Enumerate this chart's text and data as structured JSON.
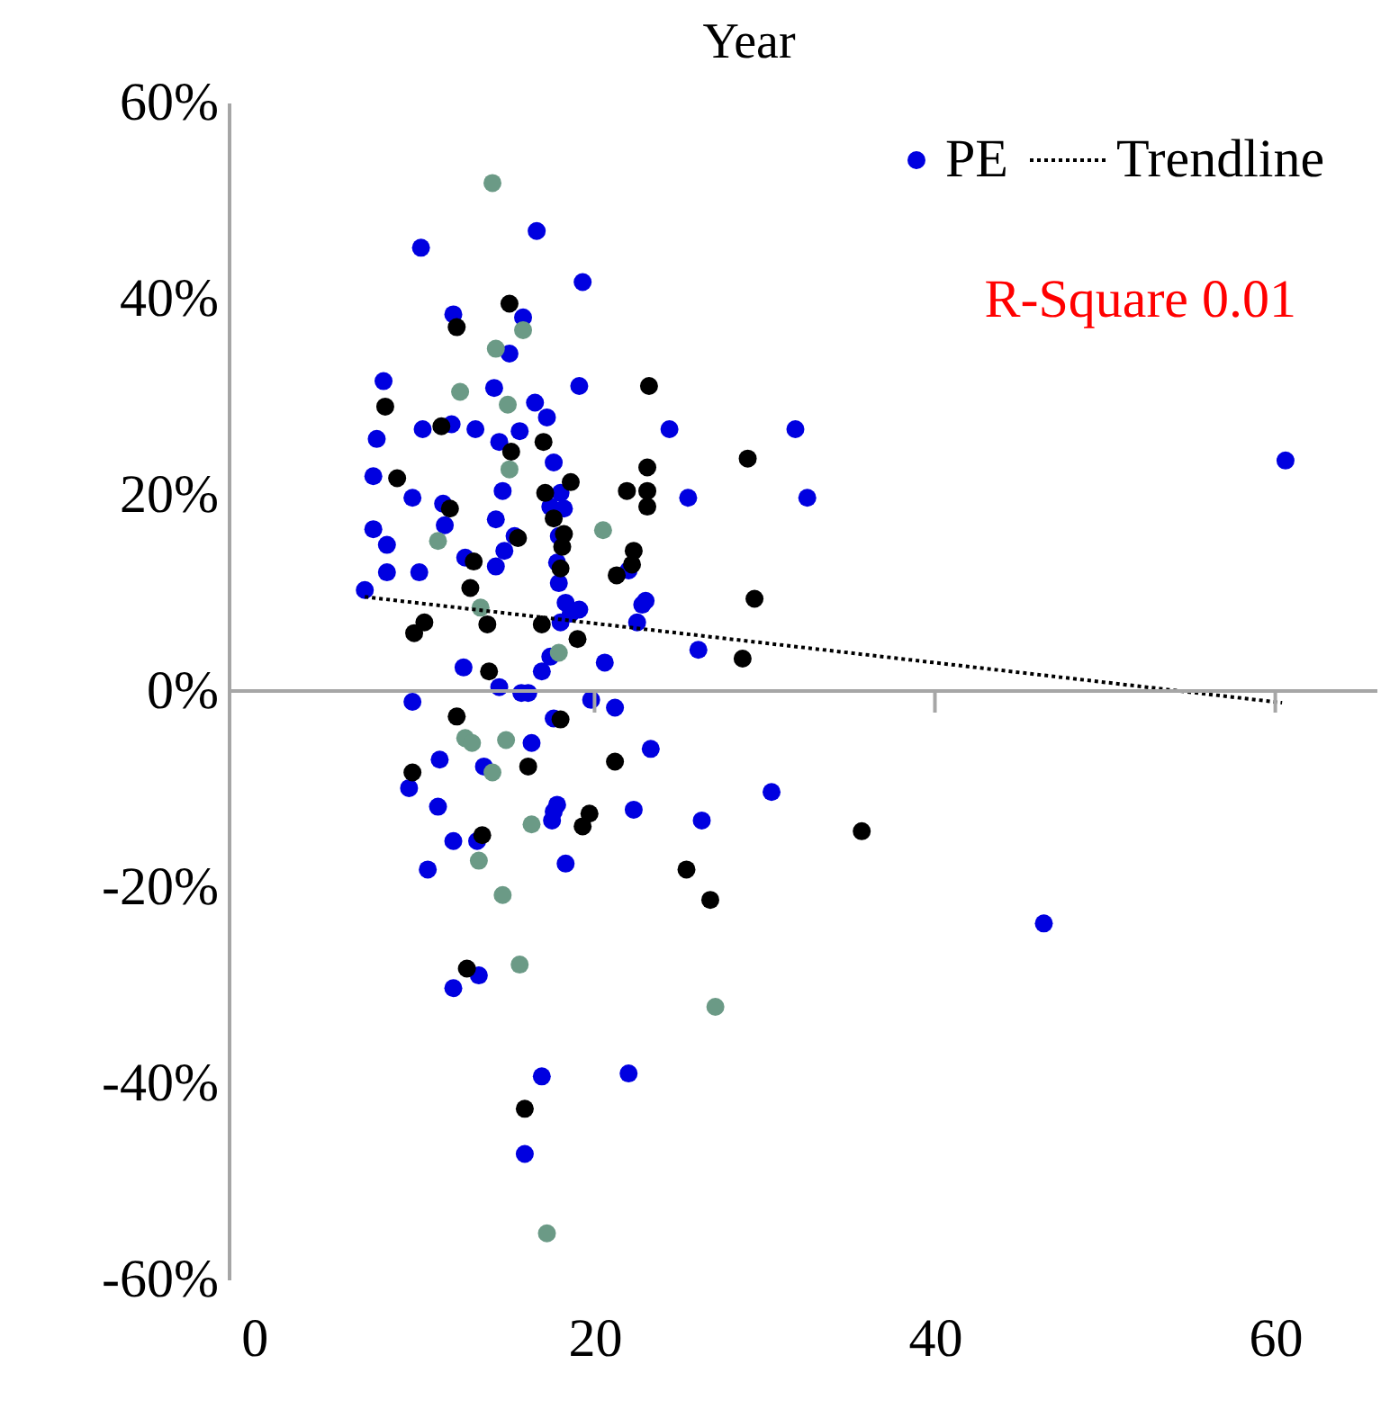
{
  "chart_data": {
    "type": "scatter",
    "title": "Year",
    "marker": "circle",
    "legend": "top right",
    "grid": false,
    "xlim": [
      -1.5,
      66
    ],
    "xticks": [
      0,
      20,
      40,
      60
    ],
    "ylim": [
      -60,
      60
    ],
    "yticks": [
      {
        "value": 60,
        "label": "60%"
      },
      {
        "value": 40,
        "label": "40%"
      },
      {
        "value": 20,
        "label": "20%"
      },
      {
        "value": 0,
        "label": "0%"
      },
      {
        "value": -20,
        "label": "-20%"
      },
      {
        "value": -40,
        "label": "-40%"
      },
      {
        "value": -60,
        "label": "-60%"
      }
    ],
    "annotations": [
      "R-Square 0.01"
    ],
    "ref_lines": [
      {
        "axis": "y",
        "value": 0,
        "color": "#a6a6a6"
      }
    ],
    "series": [
      {
        "name": "PE",
        "color": "#0000e0",
        "x": [
          6.5,
          7.2,
          7.0,
          7.0,
          7.6,
          7.8,
          7.8,
          9.3,
          9.8,
          9.3,
          9.7,
          9.9,
          9.1,
          10.2,
          10.8,
          10.9,
          11.1,
          11.2,
          11.6,
          11.7,
          11.7,
          11.7,
          12.3,
          12.4,
          13.0,
          13.1,
          13.2,
          13.5,
          14.1,
          14.2,
          14.2,
          14.4,
          14.6,
          14.4,
          14.7,
          15.0,
          15.3,
          15.6,
          15.8,
          15.7,
          16.1,
          15.9,
          16.3,
          16.6,
          16.5,
          16.9,
          16.9,
          17.2,
          17.4,
          17.4,
          17.6,
          17.6,
          17.6,
          17.8,
          17.9,
          17.9,
          18.0,
          18.0,
          18.2,
          18.3,
          18.6,
          17.8,
          17.5,
          18.3,
          19.3,
          19.1,
          19.1,
          19.8,
          20.6,
          21.2,
          22.0,
          22.0,
          22.3,
          22.5,
          22.8,
          23.0,
          23.3,
          24.4,
          25.5,
          26.1,
          26.3,
          30.4,
          31.8,
          32.5,
          46.4,
          60.6
        ],
        "values": [
          10.3,
          25.7,
          16.5,
          21.9,
          31.6,
          14.9,
          12.1,
          -1.1,
          45.2,
          19.7,
          12.1,
          26.7,
          -9.9,
          -18.2,
          -11.8,
          -7.0,
          19.1,
          16.9,
          27.2,
          38.4,
          -15.3,
          -30.3,
          2.4,
          13.6,
          26.7,
          -15.3,
          -29.0,
          -7.7,
          30.9,
          17.5,
          12.7,
          25.4,
          20.4,
          0.4,
          14.3,
          34.4,
          15.8,
          26.5,
          38.1,
          -0.2,
          -0.2,
          -47.2,
          -5.3,
          46.9,
          29.4,
          2.0,
          -39.3,
          27.9,
          18.8,
          3.5,
          23.3,
          -2.8,
          -12.3,
          13.1,
          15.8,
          11.0,
          20.2,
          7.0,
          18.6,
          9.0,
          7.9,
          -11.6,
          -13.2,
          -17.6,
          41.7,
          31.1,
          8.3,
          -0.9,
          2.9,
          -1.7,
          12.3,
          -39.0,
          -12.1,
          7.0,
          8.8,
          9.2,
          -5.9,
          26.7,
          19.7,
          4.2,
          -13.2,
          -10.3,
          26.7,
          19.7,
          -23.7,
          23.5
        ]
      },
      {
        "color": "#000000",
        "x": [
          7.7,
          8.4,
          9.4,
          10.0,
          9.3,
          11.0,
          11.5,
          11.9,
          11.9,
          12.5,
          12.7,
          12.9,
          13.7,
          13.8,
          13.4,
          15.0,
          15.1,
          15.5,
          15.9,
          16.1,
          16.9,
          17.0,
          17.1,
          17.6,
          18.2,
          18.6,
          18.1,
          18.0,
          18.0,
          19.0,
          19.3,
          19.7,
          21.2,
          21.3,
          21.9,
          22.3,
          22.2,
          23.2,
          23.1,
          23.1,
          23.1,
          28.7,
          29.0,
          29.4,
          25.4,
          26.8,
          35.7
        ],
        "values": [
          29.0,
          21.7,
          5.9,
          7.0,
          -8.3,
          27.0,
          18.6,
          37.1,
          -2.6,
          -28.3,
          10.5,
          13.2,
          6.8,
          2.0,
          -14.7,
          39.5,
          24.4,
          15.6,
          -42.6,
          -7.7,
          6.8,
          25.4,
          20.2,
          17.6,
          16.0,
          21.3,
          14.7,
          12.5,
          -2.9,
          5.3,
          -13.8,
          -12.5,
          -7.2,
          11.8,
          20.4,
          14.3,
          12.9,
          31.1,
          22.8,
          20.4,
          18.8,
          3.3,
          23.7,
          9.4,
          -18.2,
          -21.3,
          -14.3
        ]
      },
      {
        "color": "#6b9a86",
        "x": [
          14.0,
          14.2,
          15.8,
          12.1,
          14.9,
          15.0,
          10.8,
          20.5,
          13.3,
          17.9,
          12.4,
          12.8,
          14.0,
          14.8,
          16.3,
          13.2,
          14.6,
          15.6,
          27.1,
          17.2
        ],
        "values": [
          51.8,
          34.9,
          36.8,
          30.5,
          29.2,
          22.6,
          15.3,
          16.4,
          8.5,
          3.9,
          -4.8,
          -5.3,
          -8.3,
          -5.0,
          -13.6,
          -17.3,
          -20.8,
          -27.9,
          -32.2,
          -55.3
        ]
      },
      {
        "name": "Trendline",
        "type": "line",
        "color": "#000000",
        "line_style": "dotted",
        "marker": "none",
        "x": [
          6.5,
          60.4
        ],
        "values": [
          9.6,
          -1.2
        ]
      }
    ]
  }
}
